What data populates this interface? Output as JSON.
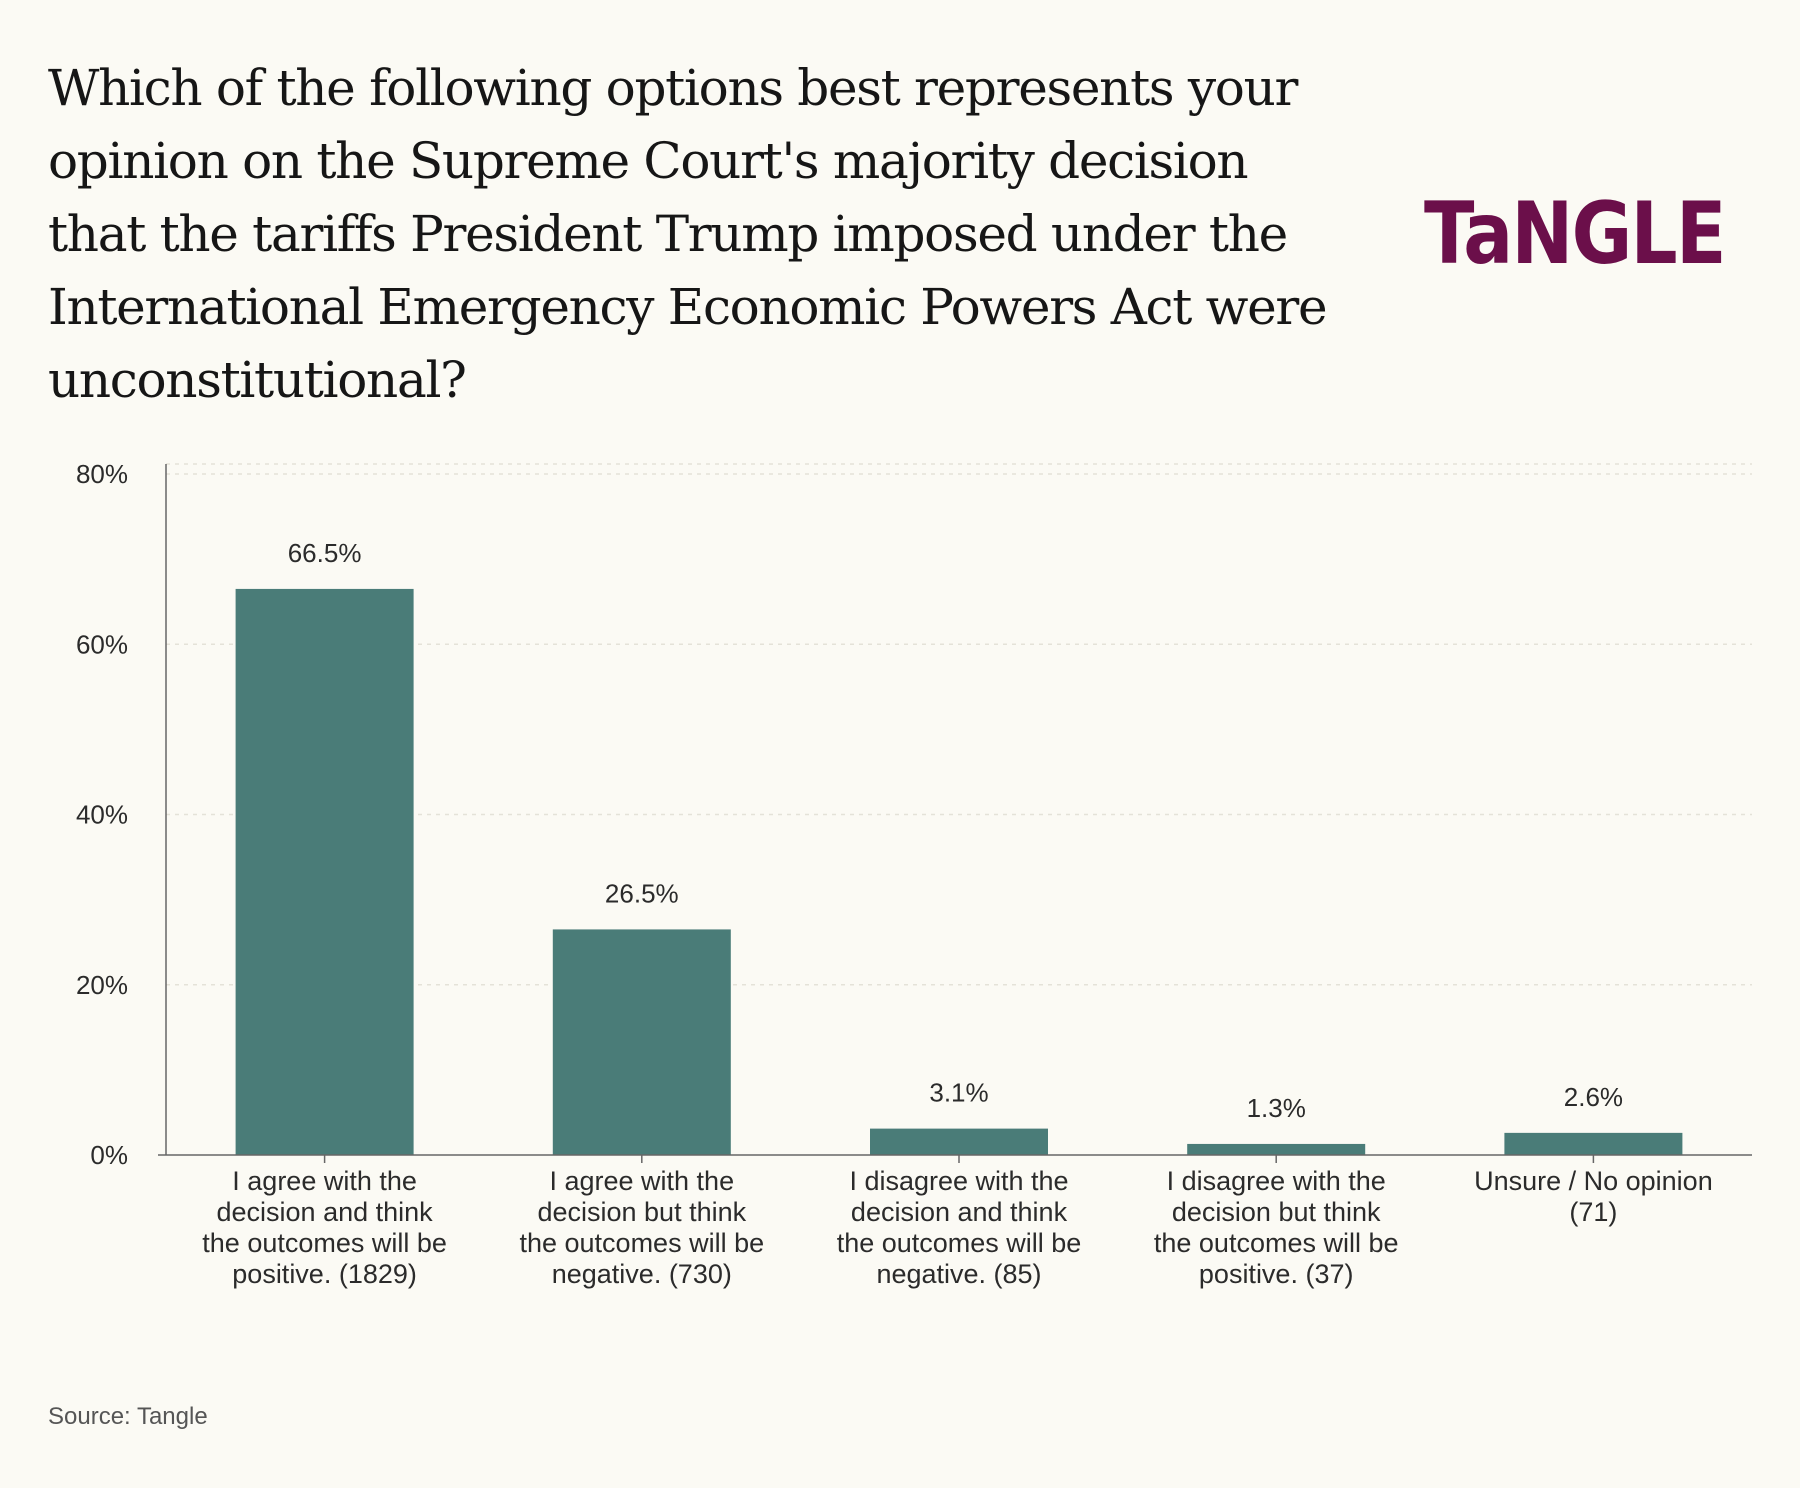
{
  "header": {
    "title": "Which of the following options best represents your opinion on the Supreme Court's majority decision that the tariffs President Trump imposed under the International Emergency Economic Powers Act were unconstitutional?",
    "logo_text": "TaNGLE"
  },
  "footer": {
    "source": "Source: Tangle"
  },
  "colors": {
    "bar": "#4a7c78",
    "brand": "#6b0f4a",
    "background": "#fbfaf4",
    "axis": "#666666",
    "grid": "#e4e2d8"
  },
  "chart_data": {
    "type": "bar",
    "categories": [
      [
        "I agree with the",
        "decision and think",
        "the outcomes will be",
        "positive. (1829)"
      ],
      [
        "I agree with the",
        "decision but think",
        "the outcomes will be",
        "negative. (730)"
      ],
      [
        "I disagree with the",
        "decision and think",
        "the outcomes will be",
        "negative. (85)"
      ],
      [
        "I disagree with the",
        "decision but think",
        "the outcomes will be",
        "positive. (37)"
      ],
      [
        "Unsure / No opinion",
        "(71)"
      ]
    ],
    "values": [
      66.5,
      26.5,
      3.1,
      1.3,
      2.6
    ],
    "data_labels": [
      "66.5%",
      "26.5%",
      "3.1%",
      "1.3%",
      "2.6%"
    ],
    "ylim": [
      0,
      80
    ],
    "yticks": [
      0,
      20,
      40,
      60,
      80
    ],
    "ytick_labels": [
      "0%",
      "20%",
      "40%",
      "60%",
      "80%"
    ],
    "grid": true,
    "xlabel": "",
    "ylabel": ""
  }
}
